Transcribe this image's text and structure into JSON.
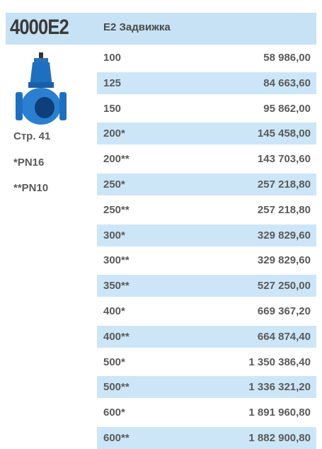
{
  "header": {
    "code": "4000E2",
    "title": "E2 Задвижка"
  },
  "sidebar": {
    "page_ref": "Стр. 41",
    "notes": [
      "*PN16",
      "**PN10"
    ]
  },
  "table": {
    "rows": [
      [
        "100",
        "58 986,00"
      ],
      [
        "125",
        "84 663,60"
      ],
      [
        "150",
        "95 862,00"
      ],
      [
        "200*",
        "145 458,00"
      ],
      [
        "200**",
        "143 703,60"
      ],
      [
        "250*",
        "257 218,80"
      ],
      [
        "250**",
        "257 218,80"
      ],
      [
        "300*",
        "329 829,60"
      ],
      [
        "300**",
        "329 829,60"
      ],
      [
        "350**",
        "527 250,00"
      ],
      [
        "400*",
        "669 367,20"
      ],
      [
        "400**",
        "664 874,40"
      ],
      [
        "500*",
        "1 350 386,40"
      ],
      [
        "500**",
        "1 336 321,20"
      ],
      [
        "600*",
        "1 891 960,80"
      ],
      [
        "600**",
        "1 882 900,80"
      ]
    ]
  }
}
